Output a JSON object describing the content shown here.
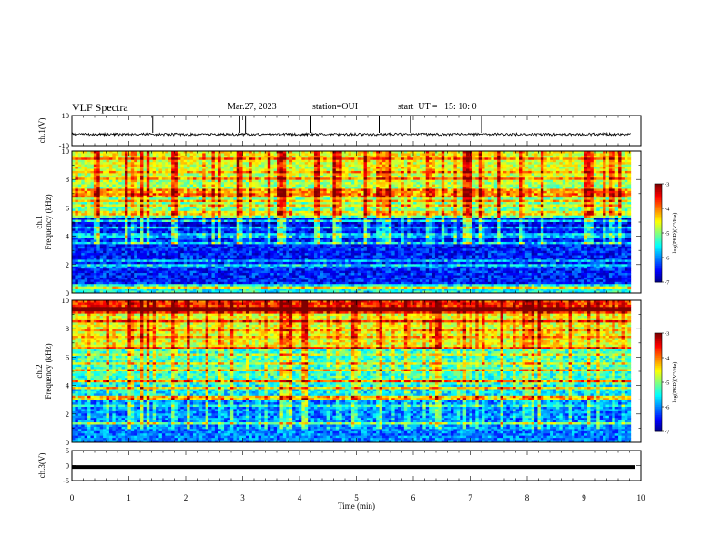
{
  "header": {
    "title": "VLF Spectra",
    "date": "Mar.27, 2023",
    "station": "station=OUI",
    "start": "start  UT =   15: 10: 0"
  },
  "chart_data": [
    {
      "type": "line",
      "panel": "ch1-waveform",
      "ylabel": "ch.1(V)",
      "ylim": [
        -10,
        10
      ],
      "yticks": [
        "10",
        "-10"
      ],
      "xlim": [
        0,
        10
      ],
      "baseline": -2.5,
      "spikes_min": [
        1.42,
        2.95,
        3.05,
        4.2,
        5.4,
        5.95,
        7.2
      ]
    },
    {
      "type": "heatmap",
      "panel": "ch1-spectrogram",
      "ylabel": [
        "ch.1",
        "Frequency  (kHz)"
      ],
      "ylim": [
        0,
        10
      ],
      "yticks": [
        "0",
        "2",
        "4",
        "6",
        "8",
        "10"
      ],
      "xlim": [
        0,
        10
      ],
      "colorbar": {
        "label": "log(PSD)(V²/Hz)",
        "range": [
          -7,
          -3
        ],
        "ticks": [
          "-3",
          "-4",
          "-5",
          "-6",
          "-7"
        ]
      }
    },
    {
      "type": "heatmap",
      "panel": "ch2-spectrogram",
      "ylabel": [
        "ch.2",
        "Frequency  (kHz)"
      ],
      "ylim": [
        0,
        10
      ],
      "yticks": [
        "0",
        "2",
        "4",
        "6",
        "8",
        "10"
      ],
      "xlim": [
        0,
        10
      ],
      "colorbar": {
        "label": "log(PSD)(V²/Hz)",
        "range": [
          -7,
          -3
        ],
        "ticks": [
          "-3",
          "-4",
          "-5",
          "-6",
          "-7"
        ]
      }
    },
    {
      "type": "line",
      "panel": "ch3-waveform",
      "ylabel": "ch.3(V)",
      "ylim": [
        -5,
        5
      ],
      "yticks": [
        "5",
        "0",
        "-5"
      ],
      "xlim": [
        0,
        10
      ],
      "baseline": -0.5
    }
  ],
  "xaxis": {
    "label": "Time  (min)",
    "ticks": [
      "0",
      "1",
      "2",
      "3",
      "4",
      "5",
      "6",
      "7",
      "8",
      "9",
      "10"
    ]
  }
}
